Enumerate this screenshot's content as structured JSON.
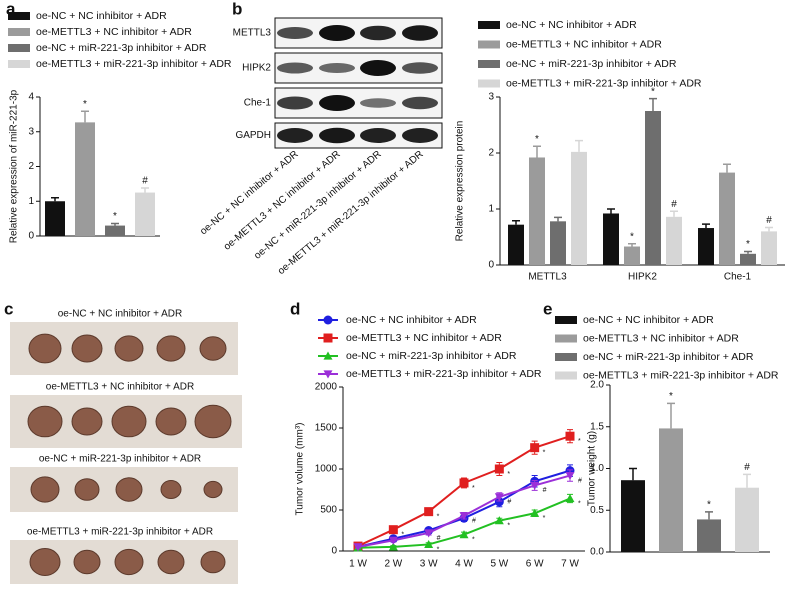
{
  "chart_data": [
    {
      "type": "bar",
      "panel": "a",
      "ylabel": "Relative expression of miR-221-3p",
      "ylim": [
        0,
        4
      ],
      "yticks": [
        0,
        1,
        2,
        3,
        4
      ],
      "series": [
        {
          "name": "oe-NC + NC inhibitor + ADR",
          "color": "#111111",
          "values": [
            1.0
          ],
          "errors": [
            0.1
          ],
          "markers": [
            null
          ]
        },
        {
          "name": "oe-METTL3 + NC inhibitor + ADR",
          "color": "#9b9b9b",
          "values": [
            3.27
          ],
          "errors": [
            0.32
          ],
          "markers": [
            "*"
          ]
        },
        {
          "name": "oe-NC + miR-221-3p inhibitor + ADR",
          "color": "#6e6e6e",
          "values": [
            0.3
          ],
          "errors": [
            0.06
          ],
          "markers": [
            "*"
          ]
        },
        {
          "name": "oe-METTL3 + miR-221-3p inhibitor + ADR",
          "color": "#d6d6d6",
          "values": [
            1.25
          ],
          "errors": [
            0.13
          ],
          "markers": [
            "#"
          ]
        }
      ]
    },
    {
      "type": "bar",
      "panel": "b",
      "ylabel": "Relative expression protein",
      "categories": [
        "METTL3",
        "HIPK2",
        "Che-1"
      ],
      "ylim": [
        0,
        3
      ],
      "yticks": [
        0,
        1,
        2,
        3
      ],
      "series": [
        {
          "name": "oe-NC + NC inhibitor + ADR",
          "color": "#111111",
          "values": [
            0.72,
            0.92,
            0.66
          ],
          "errors": [
            0.07,
            0.08,
            0.07
          ],
          "markers": [
            null,
            null,
            null
          ]
        },
        {
          "name": "oe-METTL3 + NC inhibitor + ADR",
          "color": "#9b9b9b",
          "values": [
            1.92,
            0.33,
            1.65
          ],
          "errors": [
            0.2,
            0.05,
            0.15
          ],
          "markers": [
            "*",
            "*",
            null
          ]
        },
        {
          "name": "oe-NC + miR-221-3p inhibitor + ADR",
          "color": "#6e6e6e",
          "values": [
            0.78,
            2.75,
            0.2
          ],
          "errors": [
            0.07,
            0.22,
            0.04
          ],
          "markers": [
            null,
            "*",
            "*"
          ]
        },
        {
          "name": "oe-METTL3 + miR-221-3p inhibitor + ADR",
          "color": "#d6d6d6",
          "values": [
            2.02,
            0.86,
            0.6
          ],
          "errors": [
            0.2,
            0.1,
            0.07
          ],
          "markers": [
            null,
            "#",
            "#"
          ]
        }
      ]
    },
    {
      "type": "line",
      "panel": "d",
      "ylabel": "Tumor volume (mm³)",
      "categories": [
        "1 W",
        "2 W",
        "3 W",
        "4 W",
        "5 W",
        "6 W",
        "7 W"
      ],
      "ylim": [
        0,
        2000
      ],
      "yticks": [
        0,
        500,
        1000,
        1500,
        2000
      ],
      "series": [
        {
          "name": "oe-NC + NC inhibitor + ADR",
          "color": "#1f1fe0",
          "marker": "circle",
          "values": [
            50,
            150,
            250,
            400,
            600,
            850,
            980
          ],
          "errors": [
            15,
            25,
            30,
            40,
            60,
            70,
            70
          ],
          "markers": [
            null,
            null,
            null,
            null,
            null,
            null,
            null
          ]
        },
        {
          "name": "oe-METTL3 + NC inhibitor + ADR",
          "color": "#e01f1f",
          "marker": "square",
          "values": [
            60,
            260,
            480,
            830,
            1000,
            1260,
            1400
          ],
          "errors": [
            15,
            30,
            30,
            60,
            80,
            80,
            80
          ],
          "markers": [
            null,
            "*",
            "*",
            "*",
            "*",
            "*",
            "*"
          ]
        },
        {
          "name": "oe-NC + miR-221-3p inhibitor + ADR",
          "color": "#22c022",
          "marker": "triangle",
          "values": [
            40,
            50,
            80,
            200,
            370,
            460,
            640
          ],
          "errors": [
            10,
            15,
            20,
            30,
            30,
            40,
            50
          ],
          "markers": [
            null,
            null,
            "*",
            "*",
            "*",
            "*",
            "*"
          ]
        },
        {
          "name": "oe-METTL3 + miR-221-3p inhibitor + ADR",
          "color": "#9b2fd8",
          "marker": "triangle-down",
          "values": [
            50,
            130,
            220,
            430,
            660,
            800,
            920
          ],
          "errors": [
            15,
            20,
            25,
            40,
            50,
            60,
            70
          ],
          "markers": [
            null,
            null,
            "#",
            "#",
            "#",
            "#",
            "#"
          ]
        }
      ]
    },
    {
      "type": "bar",
      "panel": "e",
      "ylabel": "Tumor weight (g)",
      "ylim": [
        0,
        2
      ],
      "yticks": [
        {
          "value": 0,
          "label": "0.0"
        },
        {
          "value": 0.5,
          "label": "0.5"
        },
        {
          "value": 1,
          "label": "1.0"
        },
        {
          "value": 1.5,
          "label": "1.5"
        },
        {
          "value": 2,
          "label": "2.0"
        }
      ],
      "series": [
        {
          "name": "oe-NC + NC inhibitor + ADR",
          "color": "#111111",
          "values": [
            0.86
          ],
          "errors": [
            0.14
          ],
          "markers": [
            null
          ]
        },
        {
          "name": "oe-METTL3 + NC inhibitor + ADR",
          "color": "#9b9b9b",
          "values": [
            1.48
          ],
          "errors": [
            0.3
          ],
          "markers": [
            "*"
          ]
        },
        {
          "name": "oe-NC + miR-221-3p inhibitor + ADR",
          "color": "#6e6e6e",
          "values": [
            0.39
          ],
          "errors": [
            0.09
          ],
          "markers": [
            "*"
          ]
        },
        {
          "name": "oe-METTL3 + miR-221-3p inhibitor + ADR",
          "color": "#d6d6d6",
          "values": [
            0.77
          ],
          "errors": [
            0.16
          ],
          "markers": [
            "#"
          ]
        }
      ]
    }
  ],
  "blot": {
    "rows": [
      "METTL3",
      "HIPK2",
      "Che-1",
      "GAPDH"
    ],
    "columns": [
      "oe-NC + NC inhibitor + ADR",
      "oe-METTL3 + NC inhibitor + ADR",
      "oe-NC + miR-221-3p inhibitor + ADR",
      "oe-METTL3 + miR-221-3p inhibitor + ADR"
    ]
  },
  "photos": {
    "panel": "c",
    "labels": [
      "oe-NC + NC inhibitor + ADR",
      "oe-METTL3 + NC inhibitor + ADR",
      "oe-NC + miR-221-3p inhibitor + ADR",
      "oe-METTL3 + miR-221-3p inhibitor + ADR"
    ]
  }
}
